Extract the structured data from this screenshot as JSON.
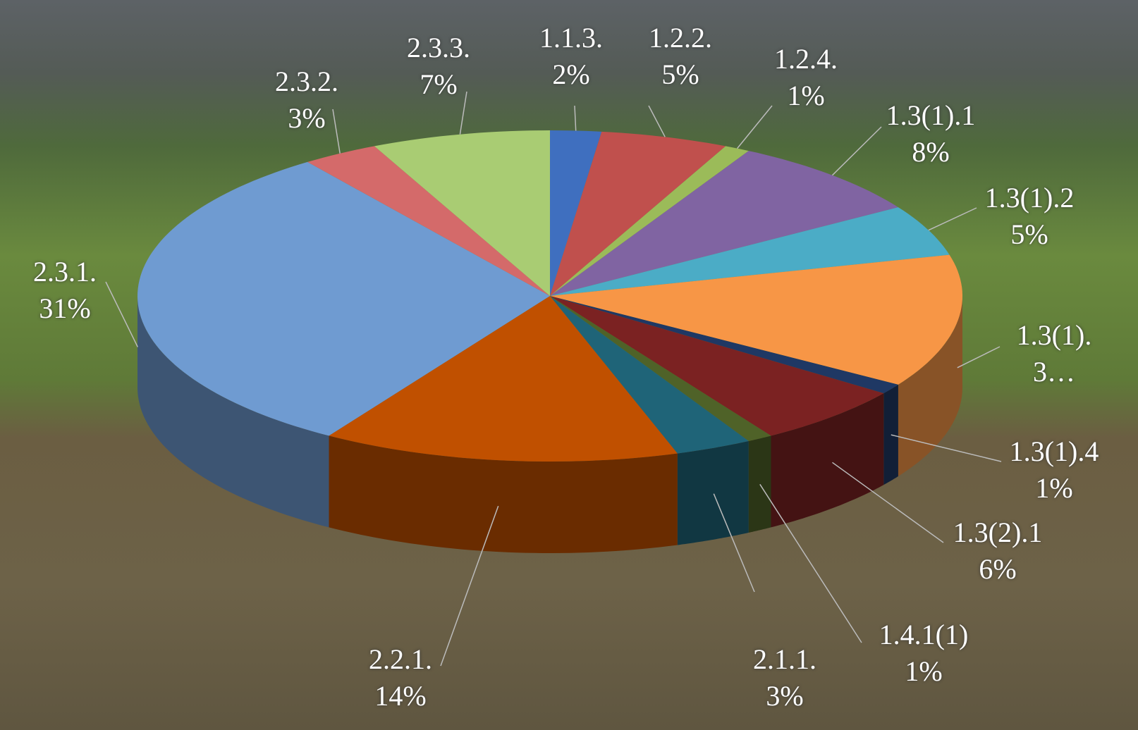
{
  "chart_data": {
    "type": "pie",
    "categories": [
      "1.1.3.",
      "1.2.2.",
      "1.2.4.",
      "1.3(1).1",
      "1.3(1).2",
      "1.3(1).3…",
      "1.3(1).4",
      "1.3(2).1",
      "1.4.1(1)",
      "2.1.1.",
      "2.2.1.",
      "2.3.1.",
      "2.3.2.",
      "2.3.3."
    ],
    "values": [
      2,
      5,
      1,
      8,
      5,
      13,
      1,
      6,
      1,
      3,
      14,
      31,
      3,
      7
    ],
    "value_labels": [
      "2%",
      "5%",
      "1%",
      "8%",
      "5%",
      null,
      "1%",
      "6%",
      "1%",
      "3%",
      "14%",
      "31%",
      "3%",
      "7%"
    ],
    "colors": [
      "#3f6fbf",
      "#c0504d",
      "#9bbb59",
      "#8064a2",
      "#4bacc6",
      "#f79646",
      "#1f3864",
      "#7b2222",
      "#4f6228",
      "#1f6478",
      "#c05000",
      "#6f9bd1",
      "#d46a6a",
      "#a9cc73"
    ]
  }
}
